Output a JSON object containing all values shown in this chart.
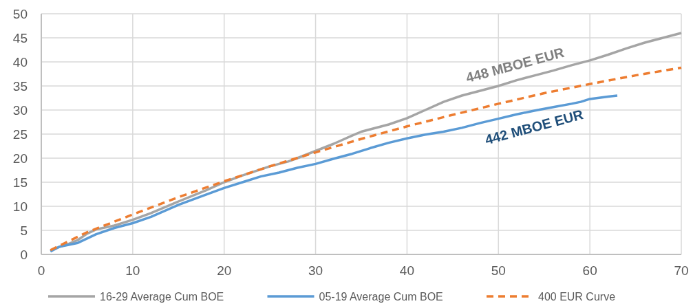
{
  "chart_data": {
    "type": "line",
    "xlim": [
      0,
      70
    ],
    "xticks": [
      0,
      10,
      20,
      30,
      40,
      50,
      60,
      70
    ],
    "ylim": [
      0,
      50
    ],
    "yticks": [
      0,
      5,
      10,
      15,
      20,
      25,
      30,
      35,
      40,
      45,
      50
    ],
    "grid": true,
    "legend": "bottom",
    "marker": "none",
    "series": [
      {
        "name": "16-29 Average Cum BOE",
        "color": "#a5a5a5",
        "line_style": "solid",
        "x": [
          1,
          2,
          3,
          4,
          5,
          6,
          7,
          8,
          10,
          12,
          15,
          18,
          20,
          22,
          25,
          27,
          28,
          30,
          32,
          34,
          35,
          37,
          38,
          40,
          42,
          44,
          46,
          48,
          50,
          52,
          54,
          56,
          58,
          60,
          62,
          64,
          66,
          68,
          70
        ],
        "values": [
          0.8,
          1.6,
          2.2,
          3.0,
          4.3,
          5.2,
          5.6,
          6.0,
          7.2,
          8.6,
          11,
          13.3,
          15,
          16.4,
          18.3,
          19.3,
          20,
          21.5,
          23,
          24.7,
          25.5,
          26.5,
          27,
          28.3,
          30,
          31.7,
          33,
          34,
          35,
          36.2,
          37.2,
          38.2,
          39.3,
          40.3,
          41.5,
          42.8,
          44,
          45,
          46
        ]
      },
      {
        "name": "05-19 Average Cum BOE",
        "color": "#5b9bd5",
        "line_style": "solid",
        "x": [
          1,
          2,
          3,
          4,
          5,
          6,
          8,
          10,
          12,
          15,
          18,
          20,
          22,
          24,
          26,
          28,
          30,
          32,
          34,
          36,
          38,
          40,
          42,
          44,
          46,
          48,
          50,
          52,
          54,
          56,
          58,
          59,
          60,
          62,
          63
        ],
        "values": [
          0.6,
          1.6,
          2.0,
          2.4,
          3.3,
          4.2,
          5.5,
          6.5,
          7.8,
          10.3,
          12.4,
          13.8,
          15,
          16.2,
          17,
          18,
          18.8,
          19.9,
          20.9,
          22.1,
          23.2,
          24.1,
          24.9,
          25.5,
          26.3,
          27.3,
          28.2,
          29.1,
          29.9,
          30.6,
          31.3,
          31.7,
          32.3,
          32.8,
          33
        ]
      },
      {
        "name": "400 EUR Curve",
        "color": "#ed7d31",
        "line_style": "dashed",
        "x": [
          1,
          5,
          10,
          15,
          20,
          25,
          30,
          35,
          40,
          45,
          50,
          55,
          60,
          65,
          70
        ],
        "values": [
          0.9,
          4.6,
          8.3,
          11.9,
          15.2,
          18.3,
          21.2,
          24,
          26.6,
          29,
          31.3,
          33.5,
          35.4,
          37.2,
          38.8
        ]
      }
    ],
    "annotations": [
      "448 MBOE EUR",
      "442 MBOE EUR"
    ]
  }
}
